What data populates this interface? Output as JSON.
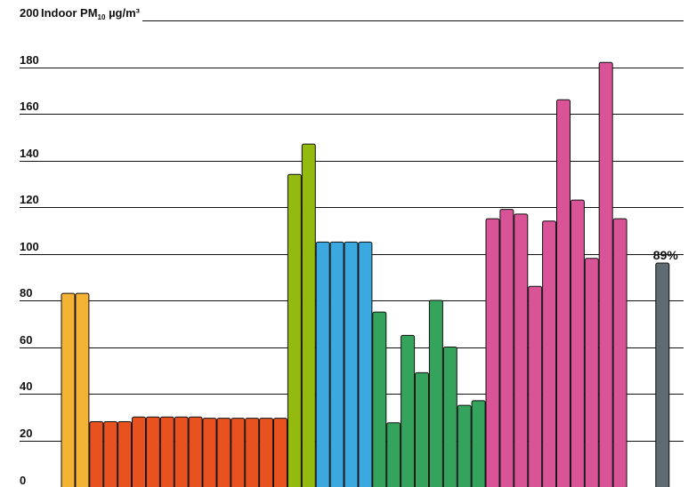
{
  "chart_data": {
    "type": "bar",
    "title": "Indoor PM",
    "title_subscript": "10",
    "title_unit": " µg/m³",
    "ylim": [
      0,
      200
    ],
    "y_ticks": [
      0,
      20,
      40,
      60,
      80,
      100,
      120,
      140,
      160,
      180,
      200
    ],
    "y_tick_labels": [
      "0",
      "20",
      "40",
      "60",
      "80",
      "100",
      "120",
      "140",
      "160",
      "180",
      "200"
    ],
    "grid": true,
    "annotation": {
      "text": "89%",
      "bar_index": 42
    },
    "bars": [
      {
        "value": 83,
        "color": "#F5B335"
      },
      {
        "value": 83,
        "color": "#F5B335"
      },
      {
        "value": 28,
        "color": "#E8521E"
      },
      {
        "value": 28,
        "color": "#E8521E"
      },
      {
        "value": 28,
        "color": "#E8521E"
      },
      {
        "value": 30,
        "color": "#E8521E"
      },
      {
        "value": 30,
        "color": "#E8521E"
      },
      {
        "value": 30,
        "color": "#E8521E"
      },
      {
        "value": 30,
        "color": "#E8521E"
      },
      {
        "value": 30,
        "color": "#E8521E"
      },
      {
        "value": 29.5,
        "color": "#E8521E"
      },
      {
        "value": 29.5,
        "color": "#E8521E"
      },
      {
        "value": 29.5,
        "color": "#E8521E"
      },
      {
        "value": 29.5,
        "color": "#E8521E"
      },
      {
        "value": 29.5,
        "color": "#E8521E"
      },
      {
        "value": 29.5,
        "color": "#E8521E"
      },
      {
        "value": 134,
        "color": "#94B90F"
      },
      {
        "value": 147,
        "color": "#94B90F"
      },
      {
        "value": 105,
        "color": "#3BA9DF"
      },
      {
        "value": 105,
        "color": "#3BA9DF"
      },
      {
        "value": 105,
        "color": "#3BA9DF"
      },
      {
        "value": 105,
        "color": "#3BA9DF"
      },
      {
        "value": 75,
        "color": "#34A35C"
      },
      {
        "value": 27.5,
        "color": "#34A35C"
      },
      {
        "value": 65,
        "color": "#34A35C"
      },
      {
        "value": 49,
        "color": "#34A35C"
      },
      {
        "value": 80,
        "color": "#34A35C"
      },
      {
        "value": 60,
        "color": "#34A35C"
      },
      {
        "value": 35,
        "color": "#34A35C"
      },
      {
        "value": 37,
        "color": "#34A35C"
      },
      {
        "value": 115,
        "color": "#D95496"
      },
      {
        "value": 119,
        "color": "#D95496"
      },
      {
        "value": 117,
        "color": "#D95496"
      },
      {
        "value": 86,
        "color": "#D95496"
      },
      {
        "value": 114,
        "color": "#D95496"
      },
      {
        "value": 166,
        "color": "#D95496"
      },
      {
        "value": 123,
        "color": "#D95496"
      },
      {
        "value": 98,
        "color": "#D95496"
      },
      {
        "value": 182,
        "color": "#D95496"
      },
      {
        "value": 115,
        "color": "#D95496"
      },
      {
        "value": null,
        "color": null
      },
      {
        "value": null,
        "color": null
      },
      {
        "value": 96,
        "color": "#5F6B72"
      }
    ]
  }
}
